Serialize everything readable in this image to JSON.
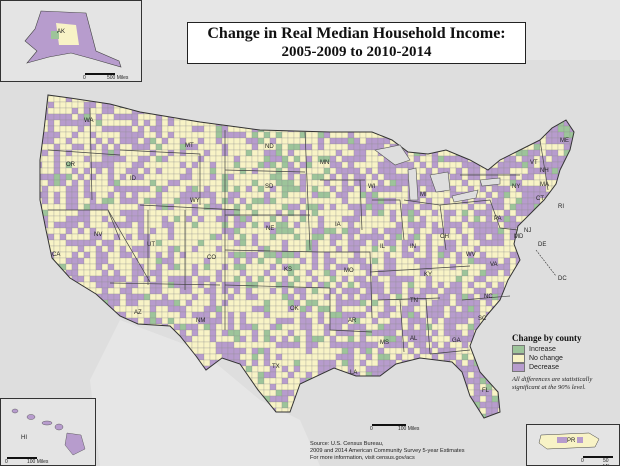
{
  "title": {
    "line1": "Change in Real Median Household Income:",
    "line2": "2005-2009 to 2010-2014"
  },
  "legend": {
    "title": "Change by county",
    "items": [
      {
        "label": "Increase",
        "color": "#9dc49a"
      },
      {
        "label": "No change",
        "color": "#f8f3c6"
      },
      {
        "label": "Decrease",
        "color": "#b79ccd"
      }
    ],
    "note_line1": "All differences are statistically",
    "note_line2": "significant at the 90% level."
  },
  "source": {
    "line1": "Source: U.S. Census Bureau,",
    "line2": "2009 and 2014 American Community Survey 5-year Estimates",
    "line3": "For more information, visit census.gov/acs"
  },
  "scales": {
    "alaska": {
      "zero": "0",
      "max": "500 Miles"
    },
    "main": {
      "zero": "0",
      "max": "100 Miles"
    },
    "hawaii": {
      "zero": "0",
      "max": "100 Miles"
    },
    "puerto_rico": {
      "zero": "0",
      "max": "50 Miles"
    }
  },
  "state_labels": {
    "WA": "WA",
    "OR": "OR",
    "CA": "CA",
    "ID": "ID",
    "NV": "NV",
    "MT": "MT",
    "WY": "WY",
    "UT": "UT",
    "AZ": "AZ",
    "CO": "CO",
    "NM": "NM",
    "ND": "ND",
    "SD": "SD",
    "NE": "NE",
    "KS": "KS",
    "OK": "OK",
    "TX": "TX",
    "MN": "MN",
    "IA": "IA",
    "MO": "MO",
    "AR": "AR",
    "LA": "LA",
    "WI": "WI",
    "IL": "IL",
    "MS": "MS",
    "MI": "MI",
    "IN": "IN",
    "KY": "KY",
    "TN": "TN",
    "AL": "AL",
    "GA": "GA",
    "FL": "FL",
    "OH": "OH",
    "WV": "WV",
    "VA": "VA",
    "NC": "NC",
    "SC": "SC",
    "PA": "PA",
    "NY": "NY",
    "NJ": "NJ",
    "DE": "DE",
    "MD": "MD",
    "DC": "DC",
    "VT": "VT",
    "NH": "NH",
    "ME": "ME",
    "MA": "MA",
    "CT": "CT",
    "RI": "RI",
    "AK": "AK",
    "HI": "HI",
    "PR": "PR"
  },
  "colors": {
    "background": "#dedede",
    "water": "#dedede",
    "increase": "#9dc49a",
    "no_change": "#f8f3c6",
    "decrease": "#b79ccd",
    "border": "#555555"
  }
}
